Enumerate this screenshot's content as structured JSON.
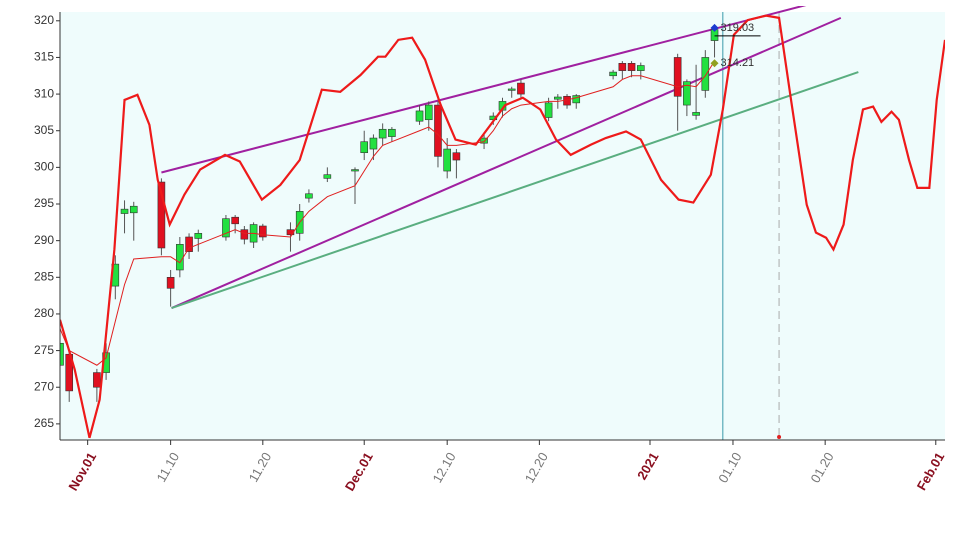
{
  "chart_data": {
    "type": "candlestick",
    "xlim": [
      -3,
      93
    ],
    "ylim": [
      262.8,
      321.2
    ],
    "yticks": [
      265,
      270,
      275,
      280,
      285,
      290,
      295,
      300,
      305,
      310,
      315,
      320
    ],
    "xticks": [
      {
        "value": 0,
        "label": "Nov.01"
      },
      {
        "value": 9,
        "label": "11.10"
      },
      {
        "value": 19,
        "label": "11.20"
      },
      {
        "value": 30,
        "label": "Dec.01"
      },
      {
        "value": 39,
        "label": "12.10"
      },
      {
        "value": 49,
        "label": "12.20"
      },
      {
        "value": 61,
        "label": "2021"
      },
      {
        "value": 70,
        "label": "01.10"
      },
      {
        "value": 80,
        "label": "01.20"
      },
      {
        "value": 92,
        "label": "Feb.01"
      }
    ],
    "up_color": "#22e040",
    "down_color": "#e01020",
    "x": [
      -3,
      -2,
      1,
      2,
      3,
      4,
      5,
      8,
      9,
      10,
      11,
      12,
      15,
      16,
      17,
      18,
      19,
      22,
      23,
      24,
      26,
      29,
      30,
      31,
      32,
      33,
      36,
      37,
      38,
      39,
      40,
      43,
      44,
      45,
      46,
      47,
      50,
      51,
      52,
      53,
      57,
      58,
      59,
      60,
      64,
      65,
      66,
      67,
      68
    ],
    "open": [
      273,
      274.5,
      272,
      272,
      283.8,
      293.7,
      293.8,
      298,
      285,
      286,
      290.5,
      290.3,
      290.5,
      293.2,
      291.5,
      289.8,
      292,
      291.5,
      291,
      295.8,
      298.5,
      299.5,
      302,
      302.5,
      304,
      304.2,
      306.3,
      306.5,
      308.5,
      299.5,
      302,
      303.3,
      306.5,
      307.8,
      310.5,
      311.5,
      306.8,
      309.3,
      309.7,
      308.8,
      312.5,
      314.2,
      314.2,
      313.2,
      315,
      308.5,
      307.1,
      310.5,
      317.3
    ],
    "high": [
      277,
      275,
      272.5,
      276,
      288,
      295.5,
      295.3,
      298.5,
      286,
      290.5,
      291,
      291.5,
      293.5,
      293.5,
      292,
      292.5,
      292.3,
      292.5,
      295,
      297,
      300,
      300,
      305,
      304.5,
      306,
      305.5,
      308.5,
      309,
      309,
      304,
      302.5,
      304.5,
      307.5,
      309.5,
      311,
      312,
      309.5,
      310,
      310,
      310,
      313.3,
      314.5,
      314.5,
      314.3,
      315.5,
      312,
      314,
      316,
      319.5
    ],
    "low": [
      272,
      268,
      268,
      271,
      282,
      291,
      290,
      288,
      281,
      285,
      287.5,
      288.5,
      290,
      291,
      289.5,
      289,
      290,
      288.5,
      290,
      295.2,
      298,
      295,
      301,
      301,
      303,
      303.5,
      305.8,
      305,
      300,
      298.5,
      298.5,
      302.5,
      305.8,
      306.8,
      309.5,
      309.5,
      306.3,
      308,
      308,
      308,
      312,
      312,
      312.3,
      312,
      305,
      307,
      306.5,
      309.5,
      315
    ],
    "close": [
      276,
      269.5,
      270,
      274.7,
      286.8,
      294.3,
      294.7,
      289,
      283.5,
      289.5,
      288.5,
      291,
      293,
      292.3,
      290.2,
      292.2,
      290.5,
      290.8,
      294,
      296.4,
      299,
      299.7,
      303.5,
      304,
      305.2,
      305.2,
      307.7,
      308.5,
      301.5,
      302.5,
      301,
      304,
      307,
      309,
      310.7,
      310,
      308.8,
      309.6,
      308.5,
      309.8,
      313,
      313.2,
      313.2,
      313.9,
      309.7,
      311.7,
      307.5,
      315,
      318.8
    ],
    "series": [
      {
        "color": "#e02020",
        "x": [
          -3,
          -2,
          1,
          2,
          3,
          4,
          5,
          8,
          9,
          10,
          11,
          12,
          15,
          16,
          17,
          18,
          19,
          22,
          23,
          24,
          26,
          29,
          30,
          31,
          32,
          33,
          36,
          37,
          38,
          39,
          40,
          43,
          44,
          45,
          46,
          47,
          50,
          51,
          52,
          53,
          57,
          58,
          59,
          60,
          64,
          65,
          66,
          67,
          68
        ],
        "values": [
          278,
          275,
          273,
          274,
          279,
          284,
          287.5,
          287.8,
          287.8,
          287,
          289,
          289.5,
          291,
          291.5,
          291,
          291,
          290.8,
          290.5,
          292.5,
          294,
          296,
          297.5,
          299.5,
          301.5,
          303,
          303.5,
          305,
          305.5,
          304.5,
          303,
          303,
          303.5,
          305,
          307,
          308,
          308.5,
          309,
          309,
          309.2,
          309.5,
          311,
          312,
          312.5,
          312.5,
          311,
          311.2,
          311,
          312.5,
          314.5
        ]
      },
      {
        "color": "#ee1a1a",
        "x": [
          -3,
          -1.4,
          0.2,
          1.3,
          2.9,
          4,
          5.4,
          6.7,
          7.6,
          8.9,
          10.5,
          12.2,
          14.9,
          16.5,
          18.9,
          20.9,
          23,
          25.4,
          27.4,
          29.6,
          31.5,
          32.3,
          33.7,
          35.2,
          36.6,
          38.3,
          39.9,
          42.1,
          43.7,
          45.3,
          47.2,
          49.1,
          50.8,
          52.4,
          54.6,
          56.2,
          58.4,
          60,
          62.2,
          64.1,
          65.7,
          67.6,
          68.9,
          70.1,
          71.6,
          73.6,
          75,
          76.3,
          78,
          79,
          80.1,
          80.9,
          82,
          83,
          84.1,
          85.2,
          86.1,
          87.2,
          88,
          89.1,
          90,
          91.3,
          92.1,
          93
        ],
        "values": [
          279.2,
          272.4,
          263.1,
          268.3,
          288.8,
          309.2,
          309.9,
          305.8,
          298.3,
          292.2,
          296.3,
          299.7,
          301.7,
          300.8,
          295.6,
          297.6,
          301,
          310.6,
          310.3,
          312.6,
          315.1,
          315.1,
          317.4,
          317.7,
          314.7,
          308.5,
          303.8,
          303.1,
          305.8,
          308.5,
          309.5,
          307.9,
          303.8,
          301.7,
          303.1,
          304,
          304.9,
          303.8,
          298.3,
          295.6,
          295.2,
          299,
          307.9,
          318.1,
          320.1,
          320.7,
          320.4,
          309.2,
          294.9,
          291.1,
          290.4,
          288.8,
          292.2,
          301,
          307.9,
          308.3,
          306.2,
          307.6,
          306.5,
          301,
          297.2,
          297.2,
          309.2,
          317.4
        ]
      }
    ],
    "trend_lines": [
      {
        "color": "#a020a0",
        "x": [
          8,
          79
        ],
        "values": [
          299.3,
          322.5
        ]
      },
      {
        "color": "#a020a0",
        "x": [
          9.1,
          81.7
        ],
        "values": [
          280.8,
          320.4
        ]
      },
      {
        "color": "#5aae80",
        "x": [
          9.1,
          83.6
        ],
        "values": [
          280.8,
          313
        ]
      }
    ],
    "vlines": [
      {
        "x": 68.9,
        "color": "#3a9aaa",
        "dash": false
      },
      {
        "x": 75,
        "color": "#aaaaaa",
        "dash": true
      }
    ],
    "annotations": [
      {
        "x": 68,
        "value": 319.03,
        "color": "#1a3ad0"
      },
      {
        "x": 68,
        "value": 314.21,
        "color": "#90a020"
      }
    ]
  }
}
